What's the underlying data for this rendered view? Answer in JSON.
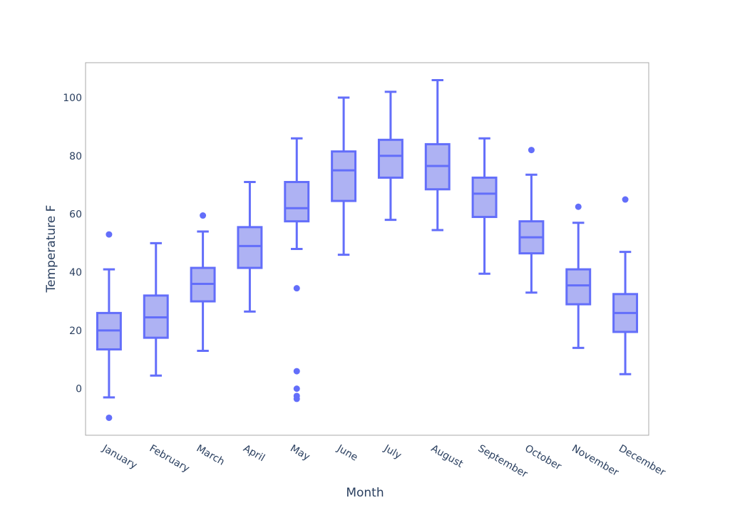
{
  "chart_data": {
    "type": "box",
    "xlabel": "Month",
    "ylabel": "Temperature F",
    "ylim": [
      -16,
      112
    ],
    "y_ticks": [
      0,
      20,
      40,
      60,
      80,
      100
    ],
    "grid": false,
    "colors": {
      "line": "#636efa",
      "fill": "#aeb2f3",
      "frame": "#a9a9a9",
      "text": "#2a3f5f"
    },
    "boxes": [
      {
        "category": "January",
        "lower_whisker": -3,
        "q1": 13.5,
        "median": 20,
        "q3": 26,
        "upper_whisker": 41,
        "outliers": [
          53,
          -10
        ]
      },
      {
        "category": "February",
        "lower_whisker": 4.5,
        "q1": 17.5,
        "median": 24.5,
        "q3": 32,
        "upper_whisker": 50,
        "outliers": []
      },
      {
        "category": "March",
        "lower_whisker": 13,
        "q1": 30,
        "median": 36,
        "q3": 41.5,
        "upper_whisker": 54,
        "outliers": [
          59.5
        ]
      },
      {
        "category": "April",
        "lower_whisker": 26.5,
        "q1": 41.5,
        "median": 49,
        "q3": 55.5,
        "upper_whisker": 71,
        "outliers": []
      },
      {
        "category": "May",
        "lower_whisker": 48,
        "q1": 57.5,
        "median": 62,
        "q3": 71,
        "upper_whisker": 86,
        "outliers": [
          34.5,
          6,
          0,
          -2.5,
          -3.5
        ]
      },
      {
        "category": "June",
        "lower_whisker": 46,
        "q1": 64.5,
        "median": 75,
        "q3": 81.5,
        "upper_whisker": 100,
        "outliers": []
      },
      {
        "category": "July",
        "lower_whisker": 58,
        "q1": 72.5,
        "median": 80,
        "q3": 85.5,
        "upper_whisker": 102,
        "outliers": []
      },
      {
        "category": "August",
        "lower_whisker": 54.5,
        "q1": 68.5,
        "median": 76.5,
        "q3": 84,
        "upper_whisker": 106,
        "outliers": []
      },
      {
        "category": "September",
        "lower_whisker": 39.5,
        "q1": 59,
        "median": 67,
        "q3": 72.5,
        "upper_whisker": 86,
        "outliers": []
      },
      {
        "category": "October",
        "lower_whisker": 33,
        "q1": 46.5,
        "median": 52,
        "q3": 57.5,
        "upper_whisker": 73.5,
        "outliers": [
          82
        ]
      },
      {
        "category": "November",
        "lower_whisker": 14,
        "q1": 29,
        "median": 35.5,
        "q3": 41,
        "upper_whisker": 57,
        "outliers": [
          62.5
        ]
      },
      {
        "category": "December",
        "lower_whisker": 5,
        "q1": 19.5,
        "median": 26,
        "q3": 32.5,
        "upper_whisker": 47,
        "outliers": [
          65
        ]
      }
    ]
  }
}
